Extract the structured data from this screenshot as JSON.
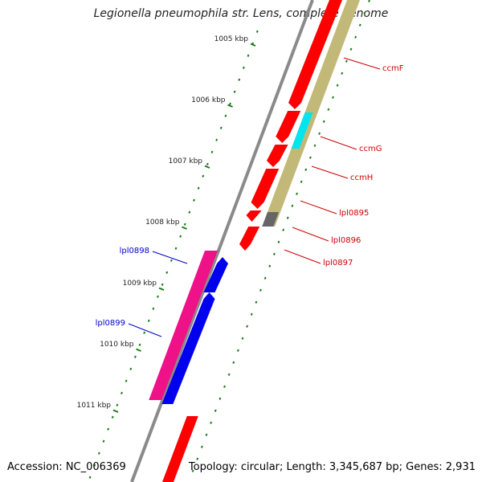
{
  "title": "Legionella pneumophila str. Lens, complete genome",
  "footer": {
    "accession": "Accession: NC_006369",
    "summary": "Topology: circular; Length: 3,345,687 bp; Genes: 2,931"
  },
  "colors": {
    "backbone": "#8a8a8a",
    "forward_gene": "#ff0000",
    "reverse_gene": "#0000ee",
    "magenta_feature": "#ee1188",
    "olive_feature": "#c2b978",
    "cyan_feature": "#00e5ee",
    "gray_feature": "#666666",
    "tick": "#1a7a1a",
    "forward_label": "#cc0000",
    "reverse_label": "#0000cc"
  },
  "ticks": [
    {
      "label": "1005 kbp"
    },
    {
      "label": "1006 kbp"
    },
    {
      "label": "1007 kbp"
    },
    {
      "label": "1008 kbp"
    },
    {
      "label": "1009 kbp"
    },
    {
      "label": "1010 kbp"
    },
    {
      "label": "1011 kbp"
    }
  ],
  "gene_labels": [
    {
      "label": "ccmF",
      "strand": "forward"
    },
    {
      "label": "ccmG",
      "strand": "forward"
    },
    {
      "label": "ccmH",
      "strand": "forward"
    },
    {
      "label": "lpl0895",
      "strand": "forward"
    },
    {
      "label": "lpl0896",
      "strand": "forward"
    },
    {
      "label": "lpl0897",
      "strand": "forward"
    },
    {
      "label": "lpl0898",
      "strand": "reverse"
    },
    {
      "label": "lpl0899",
      "strand": "reverse"
    }
  ]
}
